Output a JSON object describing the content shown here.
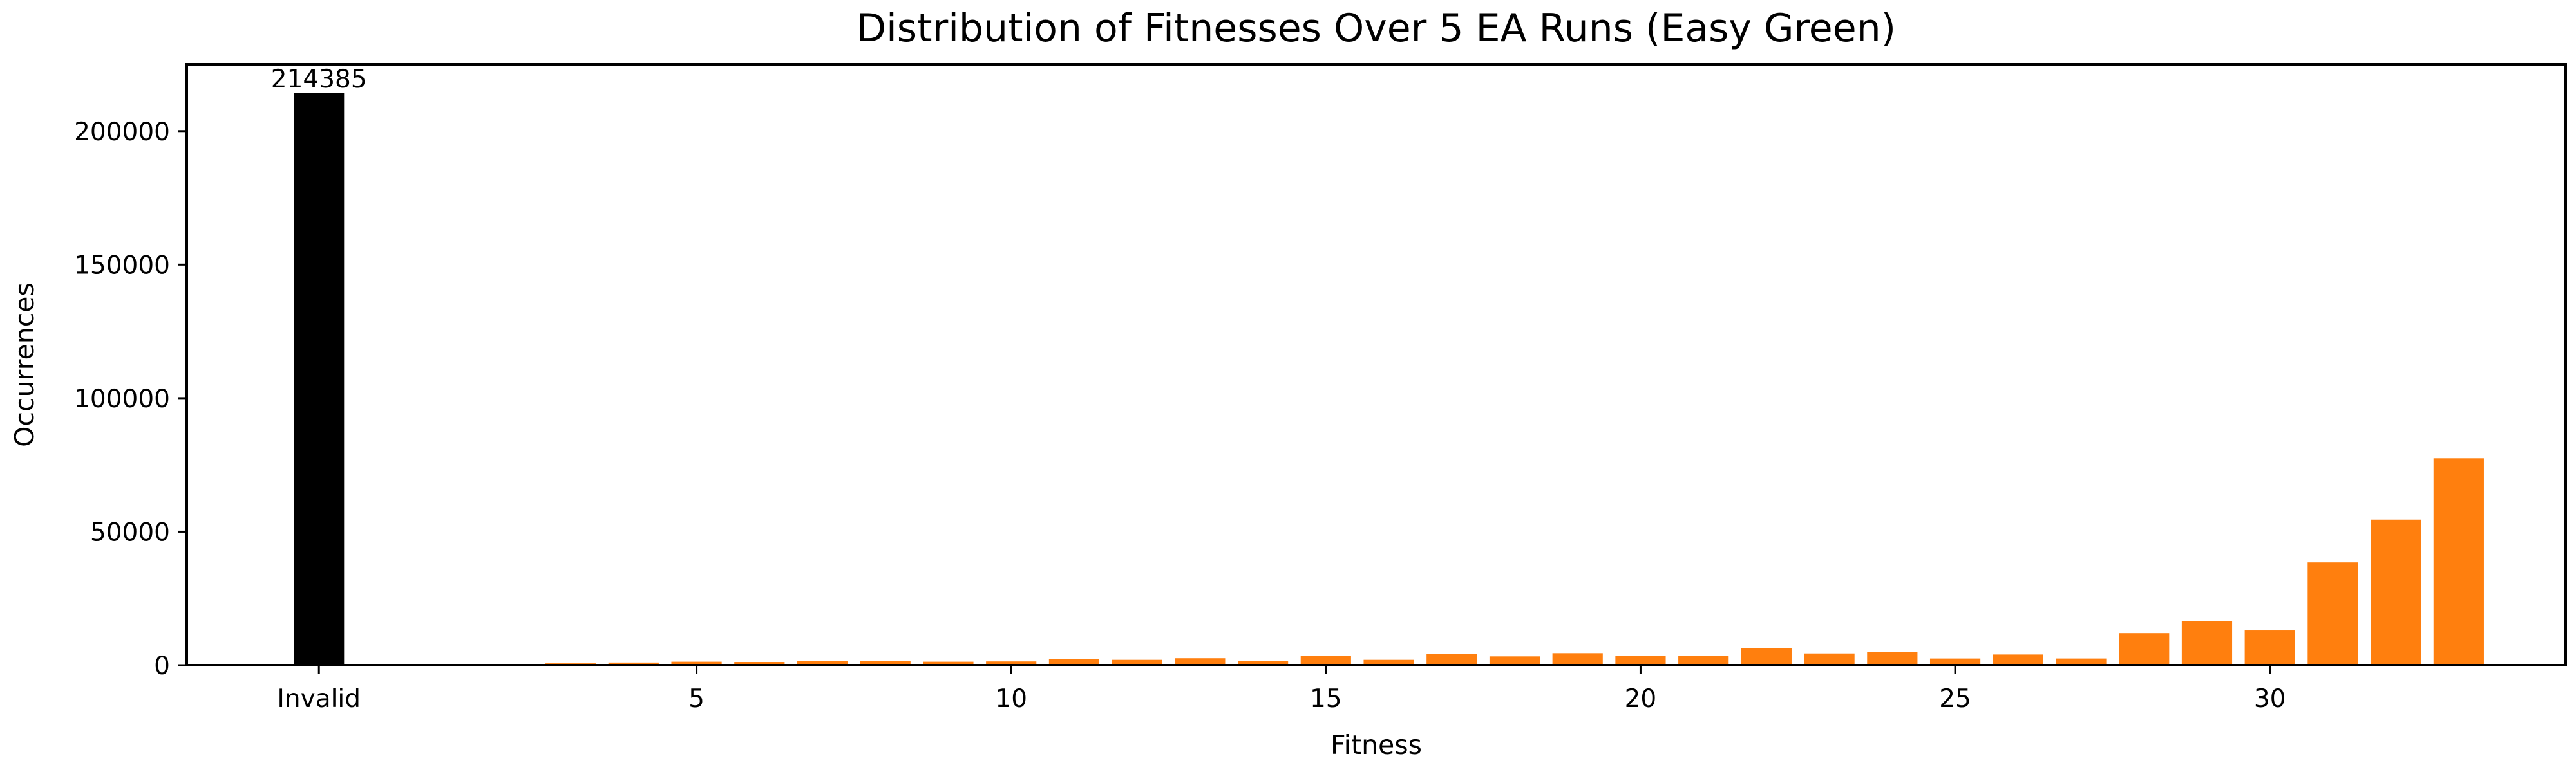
{
  "chart_data": {
    "type": "bar",
    "title": "Distribution of Fitnesses Over 5 EA Runs (Easy Green)",
    "xlabel": "Fitness",
    "ylabel": "Occurrences",
    "ylim": [
      0,
      225000
    ],
    "xlim": [
      -2.1,
      35.7
    ],
    "x_ticks": [
      {
        "value": 0,
        "label": "Invalid"
      },
      {
        "value": 6,
        "label": "5"
      },
      {
        "value": 11,
        "label": "10"
      },
      {
        "value": 16,
        "label": "15"
      },
      {
        "value": 21,
        "label": "20"
      },
      {
        "value": 26,
        "label": "25"
      },
      {
        "value": 31,
        "label": "30"
      }
    ],
    "y_ticks": [
      0,
      50000,
      100000,
      150000,
      200000
    ],
    "grid": false,
    "series": [
      {
        "color": "#000000",
        "x": [
          0
        ],
        "categories": [
          "Invalid"
        ],
        "values": [
          214385
        ],
        "data_labels": [
          "214385"
        ]
      },
      {
        "color": "#ff7f0e",
        "x": [
          1,
          2,
          3,
          4,
          5,
          6,
          7,
          8,
          9,
          10,
          11,
          12,
          13,
          14,
          15,
          16,
          17,
          18,
          19,
          20,
          21,
          22,
          23,
          24,
          25,
          26,
          27,
          28,
          29,
          30,
          31,
          32,
          33,
          34
        ],
        "categories": [
          "0",
          "1",
          "2",
          "3",
          "4",
          "5",
          "6",
          "7",
          "8",
          "9",
          "10",
          "11",
          "12",
          "13",
          "14",
          "15",
          "16",
          "17",
          "18",
          "19",
          "20",
          "21",
          "22",
          "23",
          "24",
          "25",
          "26",
          "27",
          "28",
          "29",
          "30",
          "31",
          "32",
          "33"
        ],
        "values": [
          0,
          0,
          300,
          700,
          1000,
          1300,
          1200,
          1500,
          1500,
          1300,
          1400,
          2300,
          2000,
          2600,
          1500,
          3500,
          2000,
          4300,
          3300,
          4500,
          3400,
          3500,
          6500,
          4400,
          5000,
          2500,
          4000,
          2500,
          12000,
          16500,
          13000,
          38500,
          54500,
          77500
        ]
      }
    ]
  }
}
